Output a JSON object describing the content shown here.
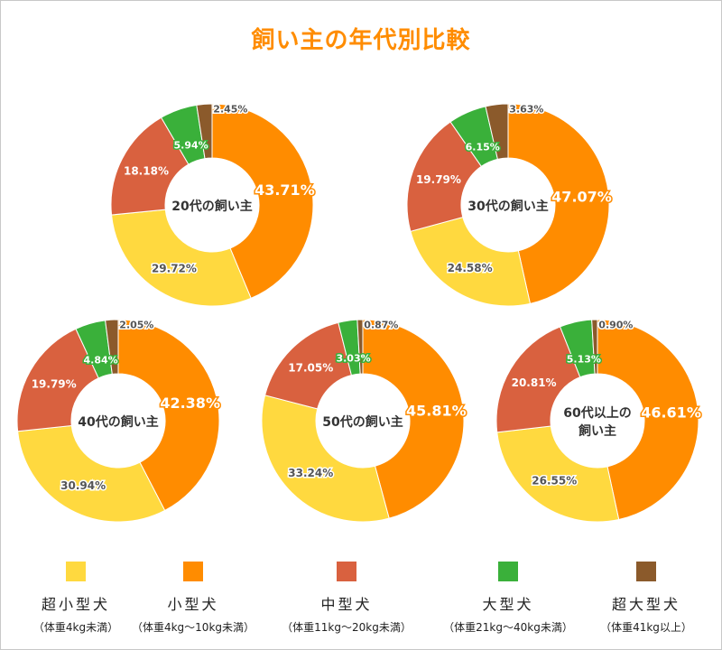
{
  "title": "飼い主の年代別比較",
  "colors": {
    "title": "#ff8c00",
    "center_text": "#333333"
  },
  "legend": [
    {
      "name": "超小型犬",
      "sub": "（体重4kg未満）",
      "color": "#ffd93f"
    },
    {
      "name": "小型犬",
      "sub": "（体重4kg～10kg未満）",
      "color": "#ff8c00"
    },
    {
      "name": "中型犬",
      "sub": "（体重11kg～20kg未満）",
      "color": "#d9613f"
    },
    {
      "name": "大型犬",
      "sub": "（体重21kg～40kg未満）",
      "color": "#3ab03a"
    },
    {
      "name": "超大型犬",
      "sub": "（体重41kg以上）",
      "color": "#8b5a2b"
    }
  ],
  "chart_data": [
    {
      "type": "pie",
      "center_label": [
        "20代の飼い主"
      ],
      "categories": [
        "超小型犬",
        "小型犬",
        "中型犬",
        "大型犬",
        "超大型犬"
      ],
      "values": [
        29.72,
        43.71,
        18.18,
        5.94,
        2.45
      ],
      "labels": [
        "29.72%",
        "43.71%",
        "18.18%",
        "5.94%",
        "2.45%"
      ]
    },
    {
      "type": "pie",
      "center_label": [
        "30代の飼い主"
      ],
      "categories": [
        "超小型犬",
        "小型犬",
        "中型犬",
        "大型犬",
        "超大型犬"
      ],
      "values": [
        24.58,
        47.07,
        19.79,
        6.15,
        3.63
      ],
      "labels": [
        "24.58%",
        "47.07%",
        "19.79%",
        "6.15%",
        "3.63%"
      ]
    },
    {
      "type": "pie",
      "center_label": [
        "40代の飼い主"
      ],
      "categories": [
        "超小型犬",
        "小型犬",
        "中型犬",
        "大型犬",
        "超大型犬"
      ],
      "values": [
        30.94,
        42.38,
        19.79,
        4.84,
        2.05
      ],
      "labels": [
        "30.94%",
        "42.38%",
        "19.79%",
        "4.84%",
        "2.05%"
      ]
    },
    {
      "type": "pie",
      "center_label": [
        "50代の飼い主"
      ],
      "categories": [
        "超小型犬",
        "小型犬",
        "中型犬",
        "大型犬",
        "超大型犬"
      ],
      "values": [
        33.24,
        45.81,
        17.05,
        3.03,
        0.87
      ],
      "labels": [
        "33.24%",
        "45.81%",
        "17.05%",
        "3.03%",
        "0.87%"
      ]
    },
    {
      "type": "pie",
      "center_label": [
        "60代以上の",
        "飼い主"
      ],
      "categories": [
        "超小型犬",
        "小型犬",
        "中型犬",
        "大型犬",
        "超大型犬"
      ],
      "values": [
        26.55,
        46.61,
        20.81,
        5.13,
        0.9
      ],
      "labels": [
        "26.55%",
        "46.61%",
        "20.81%",
        "5.13%",
        "0.90%"
      ]
    }
  ]
}
